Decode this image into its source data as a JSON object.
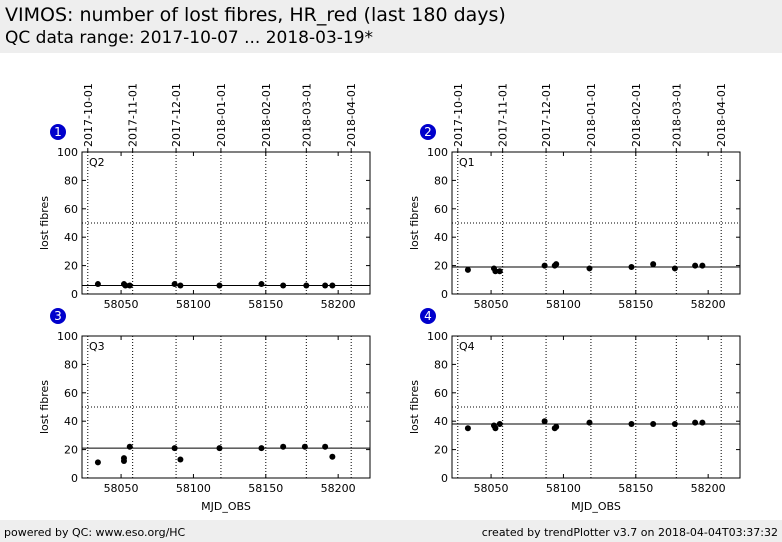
{
  "header": {
    "title": "VIMOS: number of lost fibres, HR_red (last 180 days)",
    "subtitle": "QC data range: 2017-10-07 ... 2018-03-19*"
  },
  "footer": {
    "left": "powered by QC: www.eso.org/HC",
    "right": "created by trendPlotter v3.7 on 2018-04-04T03:37:32"
  },
  "colors": {
    "background": "#ffffff",
    "header_bg": "#eeeeee",
    "badge": "#0000cc",
    "points": "#000000"
  },
  "chart_data": [
    {
      "type": "scatter",
      "badge": "1",
      "panel_label": "Q2",
      "xlabel": "",
      "ylabel": "lost fibres",
      "xlim": [
        58023,
        58222
      ],
      "ylim": [
        0,
        100
      ],
      "x_ticks": [
        58050,
        58100,
        58150,
        58200
      ],
      "y_ticks": [
        0,
        20,
        40,
        60,
        80,
        100
      ],
      "date_ticks": [
        {
          "mjd": 58027,
          "label": "2017-10-01"
        },
        {
          "mjd": 58058,
          "label": "2017-11-01"
        },
        {
          "mjd": 58088,
          "label": "2017-12-01"
        },
        {
          "mjd": 58119,
          "label": "2018-01-01"
        },
        {
          "mjd": 58150,
          "label": "2018-02-01"
        },
        {
          "mjd": 58178,
          "label": "2018-03-01"
        },
        {
          "mjd": 58209,
          "label": "2018-04-01"
        }
      ],
      "reference_line": 6,
      "threshold_line": 50,
      "x": [
        58034,
        58052,
        58053,
        58056,
        58087,
        58091,
        58118,
        58147,
        58162,
        58178,
        58191,
        58196
      ],
      "y": [
        7,
        7,
        6,
        6,
        7,
        6,
        6,
        7,
        6,
        6,
        6,
        6
      ]
    },
    {
      "type": "scatter",
      "badge": "2",
      "panel_label": "Q1",
      "xlabel": "",
      "ylabel": "lost fibres",
      "xlim": [
        58023,
        58222
      ],
      "ylim": [
        0,
        100
      ],
      "x_ticks": [
        58050,
        58100,
        58150,
        58200
      ],
      "y_ticks": [
        0,
        20,
        40,
        60,
        80,
        100
      ],
      "date_ticks": [
        {
          "mjd": 58027,
          "label": "2017-10-01"
        },
        {
          "mjd": 58058,
          "label": "2017-11-01"
        },
        {
          "mjd": 58088,
          "label": "2017-12-01"
        },
        {
          "mjd": 58119,
          "label": "2018-01-01"
        },
        {
          "mjd": 58150,
          "label": "2018-02-01"
        },
        {
          "mjd": 58178,
          "label": "2018-03-01"
        },
        {
          "mjd": 58209,
          "label": "2018-04-01"
        }
      ],
      "reference_line": 19,
      "threshold_line": 50,
      "x": [
        58034,
        58052,
        58053,
        58056,
        58087,
        58094,
        58095,
        58118,
        58147,
        58162,
        58177,
        58191,
        58196
      ],
      "y": [
        17,
        18,
        16,
        16,
        20,
        20,
        21,
        18,
        19,
        21,
        18,
        20,
        20
      ]
    },
    {
      "type": "scatter",
      "badge": "3",
      "panel_label": "Q3",
      "xlabel": "MJD_OBS",
      "ylabel": "lost fibres",
      "xlim": [
        58023,
        58222
      ],
      "ylim": [
        0,
        100
      ],
      "x_ticks": [
        58050,
        58100,
        58150,
        58200
      ],
      "y_ticks": [
        0,
        20,
        40,
        60,
        80,
        100
      ],
      "date_ticks": [],
      "reference_line": 21,
      "threshold_line": 50,
      "x": [
        58034,
        58052,
        58052,
        58056,
        58087,
        58091,
        58118,
        58147,
        58162,
        58177,
        58191,
        58196
      ],
      "y": [
        11,
        12,
        14,
        22,
        21,
        13,
        21,
        21,
        22,
        22,
        22,
        15
      ]
    },
    {
      "type": "scatter",
      "badge": "4",
      "panel_label": "Q4",
      "xlabel": "MJD_OBS",
      "ylabel": "lost fibres",
      "xlim": [
        58023,
        58222
      ],
      "ylim": [
        0,
        100
      ],
      "x_ticks": [
        58050,
        58100,
        58150,
        58200
      ],
      "y_ticks": [
        0,
        20,
        40,
        60,
        80,
        100
      ],
      "date_ticks": [],
      "reference_line": 38,
      "threshold_line": 50,
      "x": [
        58034,
        58052,
        58053,
        58056,
        58087,
        58094,
        58095,
        58118,
        58147,
        58162,
        58177,
        58191,
        58196
      ],
      "y": [
        35,
        37,
        35,
        38,
        40,
        35,
        36,
        39,
        38,
        38,
        38,
        39,
        39
      ]
    }
  ]
}
